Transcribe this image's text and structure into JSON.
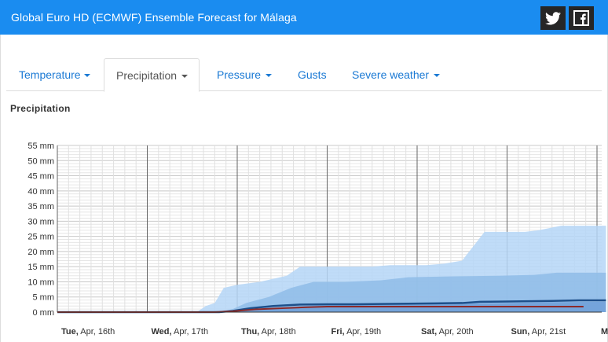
{
  "header": {
    "title": "Global Euro HD (ECMWF) Ensemble Forecast for Málaga",
    "twitter_icon": "twitter-icon",
    "facebook_icon": "facebook-icon",
    "background": "#1a8cf0"
  },
  "tabs": [
    {
      "label": "Temperature",
      "dropdown": true,
      "active": false
    },
    {
      "label": "Precipitation",
      "dropdown": true,
      "active": true
    },
    {
      "label": "Pressure",
      "dropdown": true,
      "active": false
    },
    {
      "label": "Gusts",
      "dropdown": false,
      "active": false
    },
    {
      "label": "Severe weather",
      "dropdown": true,
      "active": false
    }
  ],
  "section_title": "Precipitation",
  "chart_data": {
    "type": "area",
    "title": "Precipitation",
    "y_tick_labels": [
      "0 mm",
      "5 mm",
      "10 mm",
      "15 mm",
      "20 mm",
      "25 mm",
      "30 mm",
      "35 mm",
      "40 mm",
      "45 mm",
      "50 mm",
      "55 mm"
    ],
    "ylim": [
      0,
      55
    ],
    "x_day_labels": [
      {
        "bold": "Tue,",
        "rest": " Apr, 16th"
      },
      {
        "bold": "Wed,",
        "rest": " Apr, 17th"
      },
      {
        "bold": "Thu,",
        "rest": " Apr, 18th"
      },
      {
        "bold": "Fri,",
        "rest": " Apr, 19th"
      },
      {
        "bold": "Sat,",
        "rest": " Apr, 20th"
      },
      {
        "bold": "Sun,",
        "rest": " Apr, 21st"
      },
      {
        "bold": "M",
        "rest": ""
      }
    ],
    "x_day_positions": [
      0,
      1,
      2,
      3,
      4,
      5,
      6
    ],
    "x_range_days": [
      0,
      6.1
    ],
    "grid": true,
    "series": [
      {
        "role": "max-envelope",
        "color": "#b5d6f7",
        "x": [
          0,
          1.55,
          1.65,
          1.75,
          1.85,
          2.0,
          2.25,
          2.55,
          2.7,
          3.5,
          3.7,
          4.1,
          4.3,
          4.5,
          4.75,
          5.2,
          5.35,
          5.6,
          6.1
        ],
        "y": [
          0,
          0,
          2,
          3,
          8,
          9,
          10,
          12,
          15,
          15,
          15.5,
          15.5,
          16,
          17,
          26.5,
          26.5,
          27,
          28.5,
          28.5
        ]
      },
      {
        "role": "upper-band",
        "color": "#8fbce8",
        "x": [
          0,
          1.8,
          1.95,
          2.1,
          2.35,
          2.6,
          2.85,
          3.2,
          3.6,
          3.9,
          4.4,
          4.9,
          5.3,
          5.55,
          6.1
        ],
        "y": [
          0,
          0,
          1,
          3,
          5,
          8,
          10,
          10,
          10.5,
          11.5,
          11.8,
          12,
          12.3,
          13,
          13
        ]
      },
      {
        "role": "lower-band",
        "color": "#6f9fd8",
        "x": [
          0,
          1.85,
          2.0,
          2.2,
          2.45,
          2.7,
          3.0,
          3.5,
          4.0,
          4.5,
          5.0,
          5.5,
          6.1
        ],
        "y": [
          0,
          0,
          0.3,
          0.8,
          1.3,
          2.0,
          2.3,
          2.4,
          2.5,
          2.8,
          3.0,
          3.3,
          3.4
        ]
      },
      {
        "role": "mean",
        "color": "#1d4f8a",
        "x": [
          0,
          1.8,
          1.95,
          2.15,
          2.4,
          2.7,
          3.0,
          3.3,
          3.6,
          3.9,
          4.2,
          4.5,
          4.7,
          5.0,
          5.5,
          5.8,
          6.1
        ],
        "y": [
          0,
          0,
          0.4,
          1.3,
          2.0,
          2.5,
          2.6,
          2.6,
          2.7,
          2.8,
          2.9,
          3.0,
          3.4,
          3.5,
          3.7,
          3.9,
          3.9
        ]
      },
      {
        "role": "deterministic",
        "color": "#8b2a2a",
        "x": [
          0,
          1.75,
          1.95,
          2.2,
          2.5,
          2.75,
          3.0,
          4.0,
          5.0,
          5.85
        ],
        "y": [
          0,
          0,
          0.3,
          0.9,
          1.3,
          1.6,
          1.8,
          1.8,
          1.8,
          1.8
        ]
      }
    ]
  }
}
